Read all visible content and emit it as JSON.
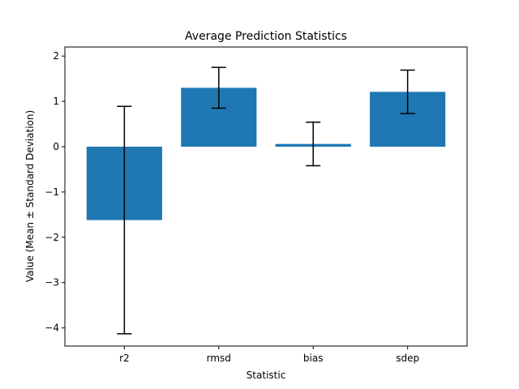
{
  "chart_data": {
    "type": "bar",
    "title": "Average Prediction Statistics",
    "xlabel": "Statistic",
    "ylabel": "Value (Mean ± Standard Deviation)",
    "categories": [
      "r2",
      "rmsd",
      "bias",
      "sdep"
    ],
    "values": [
      -1.62,
      1.3,
      0.06,
      1.21
    ],
    "errors": [
      2.51,
      0.45,
      0.48,
      0.48
    ],
    "ylim": [
      -4.4,
      2.2
    ],
    "yticks": [
      -4,
      -3,
      -2,
      -1,
      0,
      1,
      2
    ],
    "ytick_labels": [
      "−4",
      "−3",
      "−2",
      "−1",
      "0",
      "1",
      "2"
    ],
    "bar_color": "#1f77b4",
    "error_color": "#000000",
    "grid": false,
    "legend": "none"
  }
}
